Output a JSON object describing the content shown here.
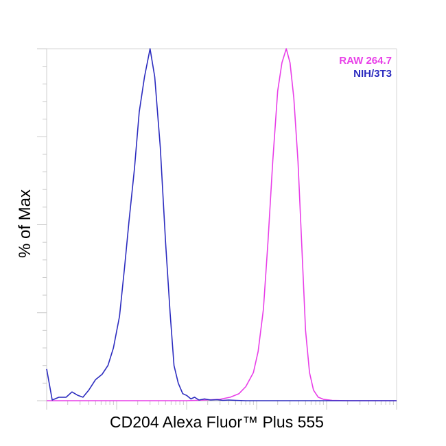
{
  "chart_data": {
    "type": "line",
    "title": "",
    "xlabel": "CD204 Alexa Fluor™ Plus 555",
    "ylabel": "% of Max",
    "x_scale": "log",
    "xlim": [
      1,
      100000
    ],
    "ylim": [
      0,
      100
    ],
    "grid": false,
    "tick_labels_shown": false,
    "legend_position": "top-right",
    "colors": {
      "RAW 264.7": "#e83ee8",
      "NIH/3T3": "#2b2bbf"
    },
    "series": [
      {
        "name": "RAW 264.7",
        "x": [
          1,
          100,
          180,
          300,
          420,
          560,
          700,
          900,
          1050,
          1250,
          1450,
          1700,
          2000,
          2300,
          2650,
          3000,
          3400,
          3900,
          4400,
          5000,
          5700,
          6500,
          7600,
          9000,
          12000,
          20000,
          100000
        ],
        "y": [
          0,
          0,
          0.2,
          0.4,
          1,
          2,
          4,
          8,
          14,
          26,
          45,
          68,
          88,
          96,
          100,
          96,
          86,
          68,
          45,
          20,
          8,
          3,
          1,
          0.4,
          0.1,
          0,
          0
        ]
      },
      {
        "name": "NIH/3T3",
        "x": [
          1,
          1.2,
          1.5,
          1.9,
          2.3,
          2.8,
          3.3,
          4.0,
          5.0,
          6.2,
          7.5,
          9.0,
          11,
          13,
          15,
          18,
          21,
          25,
          30,
          35,
          42,
          50,
          58,
          66,
          76,
          88,
          100,
          115,
          130,
          150,
          180,
          220,
          270,
          330,
          400,
          500,
          700,
          1000,
          100000
        ],
        "y": [
          9,
          0.2,
          1,
          1,
          2.5,
          1.5,
          1,
          3,
          6,
          7.5,
          10,
          15,
          24,
          38,
          51,
          66,
          82,
          92,
          100,
          92,
          72,
          45,
          25,
          10,
          5,
          2,
          1.5,
          0.5,
          1,
          0.2,
          0.5,
          0.2,
          0.3,
          0.1,
          0.2,
          0.1,
          0,
          0,
          0
        ]
      }
    ]
  }
}
